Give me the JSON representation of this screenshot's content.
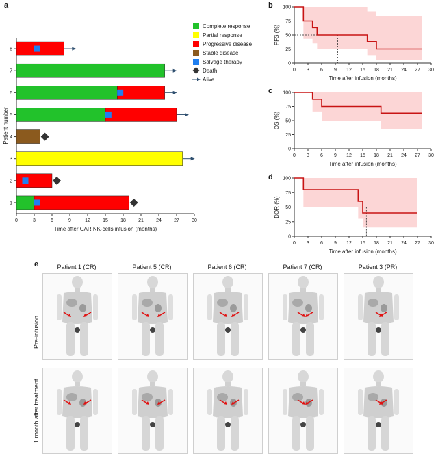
{
  "panels": {
    "a": "a",
    "b": "b",
    "c": "c",
    "d": "d",
    "e": "e"
  },
  "chart_data": [
    {
      "panel": "a",
      "type": "bar",
      "orientation": "horizontal",
      "xlabel": "Time after CAR NK-cells infusion (months)",
      "ylabel": "Patient number",
      "xlim": [
        0,
        30
      ],
      "xticks": [
        0,
        3,
        6,
        9,
        12,
        15,
        18,
        21,
        24,
        27,
        30
      ],
      "categories": [
        "1",
        "2",
        "3",
        "4",
        "5",
        "6",
        "7",
        "8"
      ],
      "legend": {
        "placement": "top-right",
        "items": [
          {
            "label": "Complete response",
            "color": "#22c22b",
            "kind": "box"
          },
          {
            "label": "Partial response",
            "color": "#ffff00",
            "kind": "box"
          },
          {
            "label": "Progressive disease",
            "color": "#ff0000",
            "kind": "box"
          },
          {
            "label": "Stable disease",
            "color": "#8b5a1e",
            "kind": "box"
          },
          {
            "label": "Salvage therapy",
            "color": "#1f7ff0",
            "kind": "box"
          },
          {
            "label": "Death",
            "color": "#333333",
            "kind": "diamond"
          },
          {
            "label": "Alive",
            "color": "#2f4f6f",
            "kind": "arrow"
          }
        ]
      },
      "patients": [
        {
          "id": "1",
          "segments": [
            {
              "status": "Complete response",
              "start": 0,
              "end": 3
            },
            {
              "status": "Progressive disease",
              "start": 3,
              "end": 19
            }
          ],
          "salvage": [
            3.5
          ],
          "outcome": "Death",
          "end": 19
        },
        {
          "id": "2",
          "segments": [
            {
              "status": "Progressive disease",
              "start": 0,
              "end": 6
            }
          ],
          "salvage": [
            1.5
          ],
          "outcome": "Death",
          "end": 6
        },
        {
          "id": "3",
          "segments": [
            {
              "status": "Partial response",
              "start": 0,
              "end": 28
            }
          ],
          "salvage": [],
          "outcome": "Alive",
          "end": 28
        },
        {
          "id": "4",
          "segments": [
            {
              "status": "Stable disease",
              "start": 0,
              "end": 4
            }
          ],
          "salvage": [],
          "outcome": "Death",
          "end": 4
        },
        {
          "id": "5",
          "segments": [
            {
              "status": "Complete response",
              "start": 0,
              "end": 15
            },
            {
              "status": "Progressive disease",
              "start": 15,
              "end": 27
            }
          ],
          "salvage": [
            15.5
          ],
          "outcome": "Alive",
          "end": 27
        },
        {
          "id": "6",
          "segments": [
            {
              "status": "Complete response",
              "start": 0,
              "end": 17
            },
            {
              "status": "Progressive disease",
              "start": 17,
              "end": 25
            }
          ],
          "salvage": [
            17.5
          ],
          "outcome": "Alive",
          "end": 25
        },
        {
          "id": "7",
          "segments": [
            {
              "status": "Complete response",
              "start": 0,
              "end": 25
            }
          ],
          "salvage": [],
          "outcome": "Alive",
          "end": 25
        },
        {
          "id": "8",
          "segments": [
            {
              "status": "Progressive disease",
              "start": 0,
              "end": 8
            }
          ],
          "salvage": [
            3.5
          ],
          "outcome": "Alive",
          "end": 8
        }
      ]
    },
    {
      "panel": "b",
      "type": "line",
      "step": true,
      "xlabel": "Time after infusion (months)",
      "ylabel": "PFS (%)",
      "xlim": [
        0,
        30
      ],
      "ylim": [
        0,
        100
      ],
      "xticks": [
        0,
        3,
        6,
        9,
        12,
        15,
        18,
        21,
        24,
        27,
        30
      ],
      "yticks": [
        0,
        25,
        50,
        75,
        100
      ],
      "series": [
        {
          "x": [
            1,
            2,
            4,
            5,
            16,
            18,
            28
          ],
          "y": [
            100,
            75,
            63,
            50,
            38,
            25,
            25
          ]
        }
      ],
      "ci_band": {
        "x": [
          0,
          1,
          2,
          4,
          5,
          16,
          18,
          28
        ],
        "upper": [
          100,
          100,
          100,
          100,
          100,
          92,
          83,
          83
        ],
        "lower": [
          100,
          100,
          43,
          35,
          25,
          13,
          5,
          5
        ]
      },
      "median_line": {
        "x": 9.5,
        "y": 50
      }
    },
    {
      "panel": "c",
      "type": "line",
      "step": true,
      "xlabel": "Time after infusion (months)",
      "ylabel": "OS (%)",
      "xlim": [
        0,
        30
      ],
      "ylim": [
        0,
        100
      ],
      "xticks": [
        0,
        3,
        6,
        9,
        12,
        15,
        18,
        21,
        24,
        27,
        30
      ],
      "yticks": [
        0,
        25,
        50,
        75,
        100
      ],
      "series": [
        {
          "x": [
            0,
            4,
            6,
            19,
            28
          ],
          "y": [
            100,
            88,
            75,
            63,
            63
          ]
        }
      ],
      "ci_band": {
        "x": [
          0,
          4,
          6,
          19,
          28
        ],
        "upper": [
          100,
          100,
          100,
          100,
          100
        ],
        "lower": [
          100,
          66,
          50,
          35,
          35
        ]
      }
    },
    {
      "panel": "d",
      "type": "line",
      "step": true,
      "xlabel": "Time after infusion (months)",
      "ylabel": "DOR (%)",
      "xlim": [
        0,
        30
      ],
      "ylim": [
        0,
        100
      ],
      "xticks": [
        0,
        3,
        6,
        9,
        12,
        15,
        18,
        21,
        24,
        27,
        30
      ],
      "yticks": [
        0,
        25,
        50,
        75,
        100
      ],
      "series": [
        {
          "x": [
            0,
            2,
            14,
            15,
            27
          ],
          "y": [
            100,
            80,
            60,
            40,
            40
          ]
        }
      ],
      "ci_band": {
        "x": [
          0,
          2,
          14,
          15,
          27
        ],
        "upper": [
          100,
          100,
          100,
          100,
          100
        ],
        "lower": [
          100,
          50,
          30,
          15,
          15
        ]
      },
      "median_line": {
        "x": 15.8,
        "y": 50
      }
    }
  ],
  "pet": {
    "columns": [
      "Patient 1 (CR)",
      "Patient 5 (CR)",
      "Patient 6 (CR)",
      "Patient 7 (CR)",
      "Patient 3 (PR)"
    ],
    "rows": [
      "Pre-infusion",
      "1 month after treatment"
    ]
  },
  "colors": {
    "km_line": "#c81414",
    "km_band": "#fcd6d6",
    "axis": "#333333",
    "arrow": "#e01010"
  }
}
